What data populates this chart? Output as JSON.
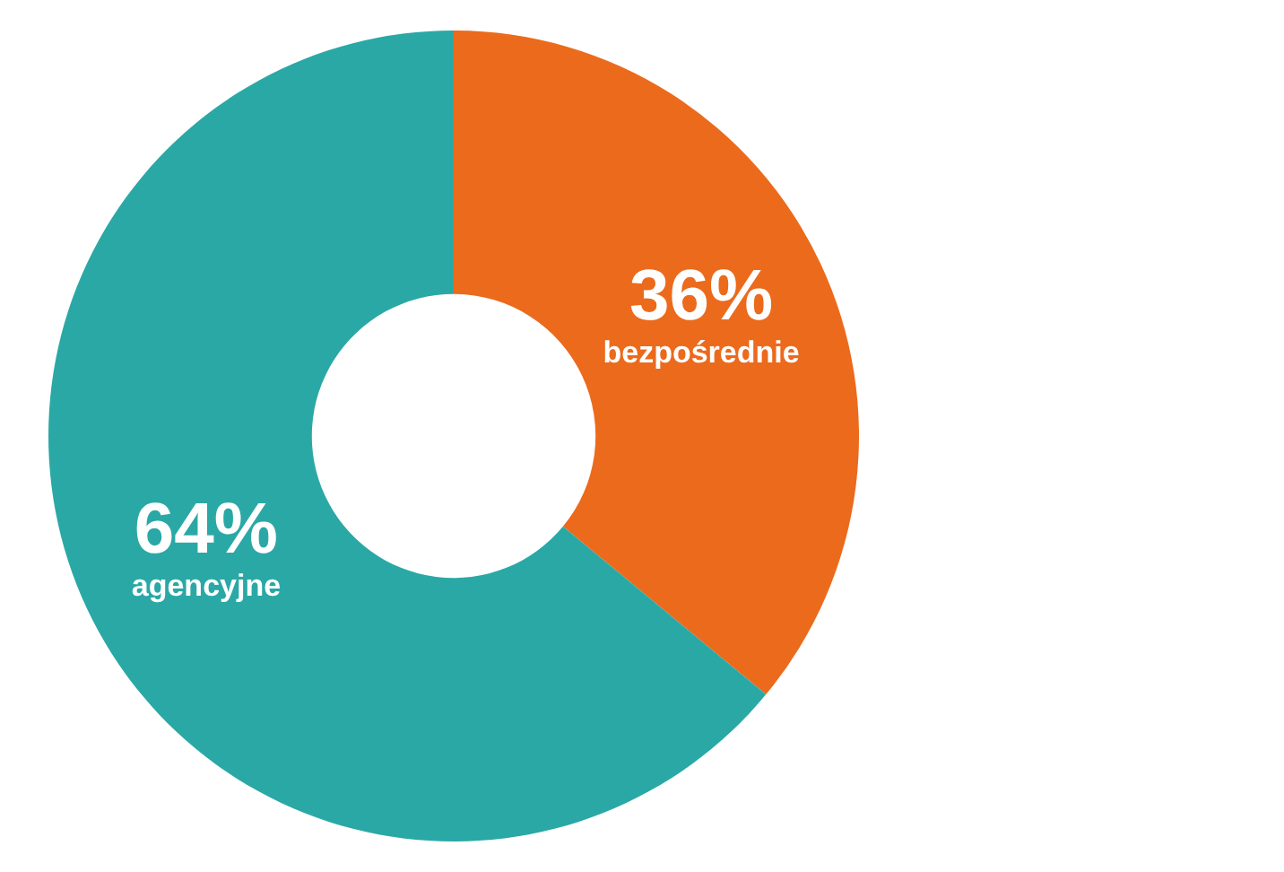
{
  "chart_data": {
    "type": "donut",
    "categories": [
      "bezpośrednie",
      "agencyjne"
    ],
    "values": [
      36,
      64
    ],
    "colors": [
      "#ec6a1c",
      "#2aa8a6"
    ],
    "value_labels": [
      "36%",
      "64%"
    ],
    "legend": false
  }
}
